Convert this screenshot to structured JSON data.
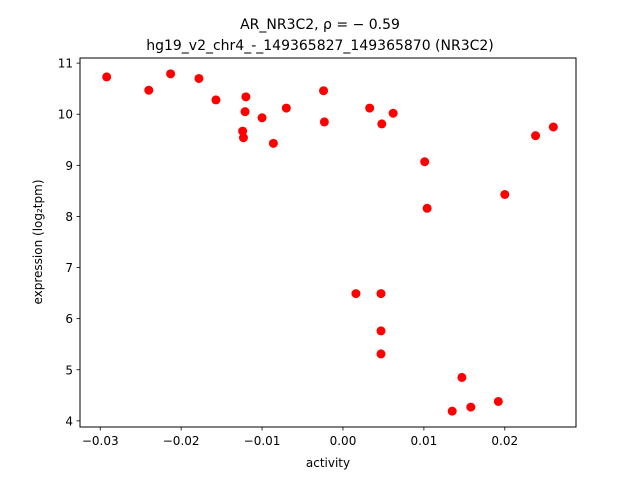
{
  "chart_data": {
    "type": "scatter",
    "title_line1": "AR_NR3C2, ρ = − 0.59",
    "title_line2": "hg19_v2_chr4_-_149365827_149365870 (NR3C2)",
    "xlabel": "activity",
    "ylabel": "expression (log₂tpm)",
    "xlim": [
      -0.0325,
      0.0288
    ],
    "ylim": [
      3.88,
      11.1
    ],
    "xticks": [
      -0.03,
      -0.02,
      -0.01,
      0.0,
      0.01,
      0.02
    ],
    "xtick_labels": [
      "−0.03",
      "−0.02",
      "−0.01",
      "0.00",
      "0.01",
      "0.02"
    ],
    "yticks": [
      4,
      5,
      6,
      7,
      8,
      9,
      10,
      11
    ],
    "ytick_labels": [
      "4",
      "5",
      "6",
      "7",
      "8",
      "9",
      "10",
      "11"
    ],
    "marker_color": "#ff0000",
    "grid": false,
    "points": [
      {
        "x": -0.0292,
        "y": 10.73
      },
      {
        "x": -0.024,
        "y": 10.47
      },
      {
        "x": -0.0213,
        "y": 10.79
      },
      {
        "x": -0.0178,
        "y": 10.7
      },
      {
        "x": -0.0157,
        "y": 10.28
      },
      {
        "x": -0.0124,
        "y": 9.67
      },
      {
        "x": -0.0123,
        "y": 9.54
      },
      {
        "x": -0.0121,
        "y": 10.05
      },
      {
        "x": -0.012,
        "y": 10.34
      },
      {
        "x": -0.01,
        "y": 9.93
      },
      {
        "x": -0.0086,
        "y": 9.43
      },
      {
        "x": -0.007,
        "y": 10.12
      },
      {
        "x": -0.0024,
        "y": 10.46
      },
      {
        "x": -0.0023,
        "y": 9.85
      },
      {
        "x": 0.0016,
        "y": 6.49
      },
      {
        "x": 0.0033,
        "y": 10.12
      },
      {
        "x": 0.0047,
        "y": 6.49
      },
      {
        "x": 0.0047,
        "y": 5.76
      },
      {
        "x": 0.0047,
        "y": 5.31
      },
      {
        "x": 0.0048,
        "y": 9.81
      },
      {
        "x": 0.0062,
        "y": 10.02
      },
      {
        "x": 0.0101,
        "y": 9.07
      },
      {
        "x": 0.0104,
        "y": 8.16
      },
      {
        "x": 0.0135,
        "y": 4.19
      },
      {
        "x": 0.0147,
        "y": 4.85
      },
      {
        "x": 0.0158,
        "y": 4.27
      },
      {
        "x": 0.0192,
        "y": 4.38
      },
      {
        "x": 0.02,
        "y": 8.43
      },
      {
        "x": 0.0238,
        "y": 9.58
      },
      {
        "x": 0.026,
        "y": 9.75
      }
    ]
  }
}
